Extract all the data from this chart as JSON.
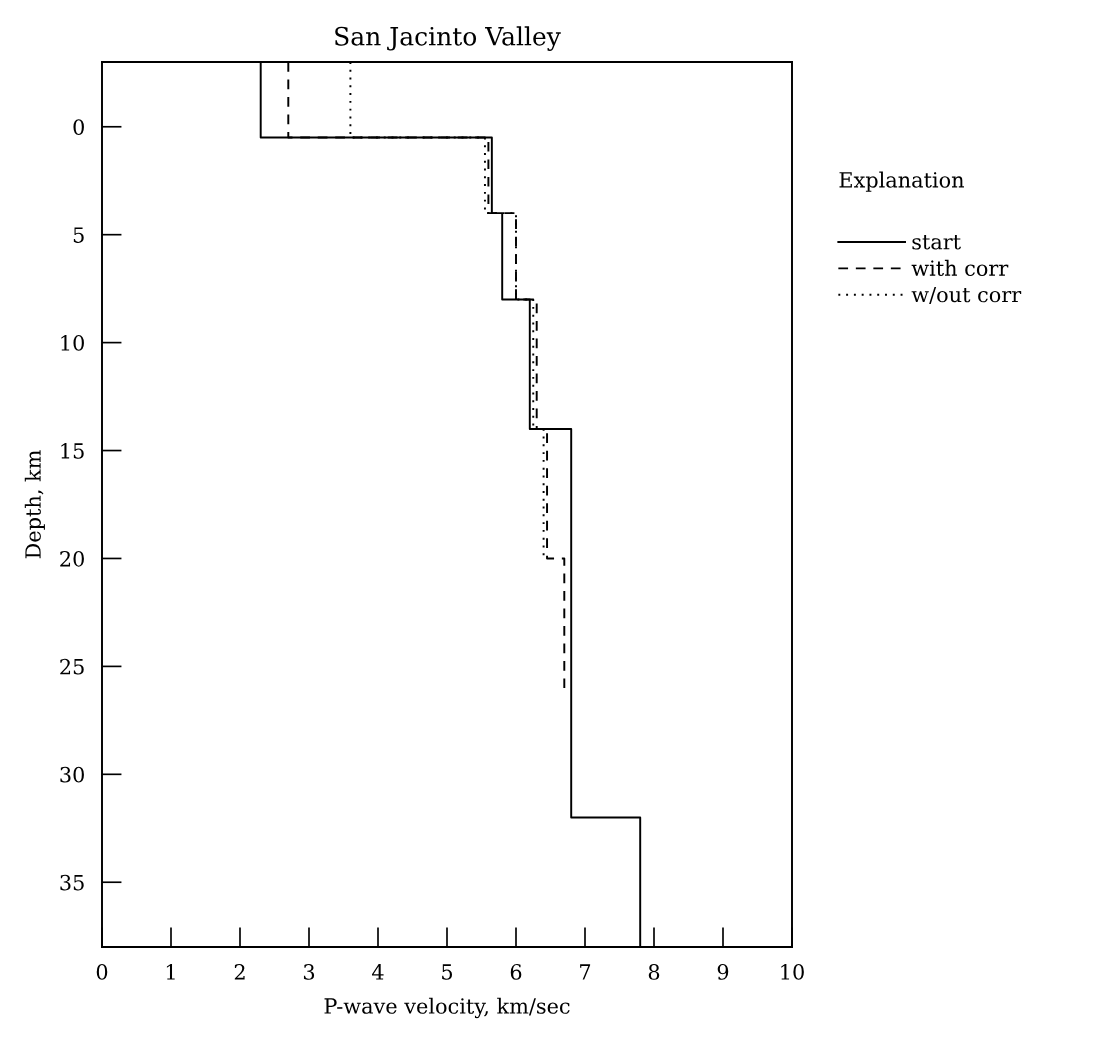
{
  "chart_data": {
    "type": "line",
    "title": "San Jacinto Valley",
    "xlabel": "P-wave velocity, km/sec",
    "ylabel": "Depth, km",
    "legend_title": "Explanation",
    "legend": "right",
    "grid": false,
    "marker": "none",
    "xlim": [
      0,
      10
    ],
    "ylim": [
      38,
      -3
    ],
    "xticks": [
      0,
      1,
      2,
      3,
      4,
      5,
      6,
      7,
      8,
      9,
      10
    ],
    "yticks": [
      0,
      5,
      10,
      15,
      20,
      25,
      30,
      35
    ],
    "series": [
      {
        "name": "start",
        "color": "#000000",
        "line_style": "solid",
        "x": [
          2.3,
          2.3,
          5.65,
          5.65,
          5.8,
          5.8,
          6.2,
          6.2,
          6.8,
          6.8,
          7.8,
          7.8
        ],
        "values": [
          -3,
          0.5,
          0.5,
          4,
          4,
          8,
          8,
          14,
          14,
          32,
          32,
          38
        ]
      },
      {
        "name": "with corr",
        "color": "#000000",
        "line_style": "dashed",
        "x": [
          2.7,
          2.7,
          5.6,
          5.6,
          6.0,
          6.0,
          6.3,
          6.3,
          6.45,
          6.45,
          6.7,
          6.7
        ],
        "values": [
          -3,
          0.5,
          0.5,
          4,
          4,
          8,
          8,
          14,
          14,
          20,
          20,
          26
        ]
      },
      {
        "name": "w/out corr",
        "color": "#000000",
        "line_style": "dotted",
        "x": [
          3.6,
          3.6,
          5.55,
          5.55,
          6.0,
          6.0,
          6.25,
          6.25,
          6.4,
          6.4
        ],
        "values": [
          -3,
          0.5,
          0.5,
          4,
          4,
          8,
          8,
          14,
          14,
          20
        ]
      }
    ]
  }
}
